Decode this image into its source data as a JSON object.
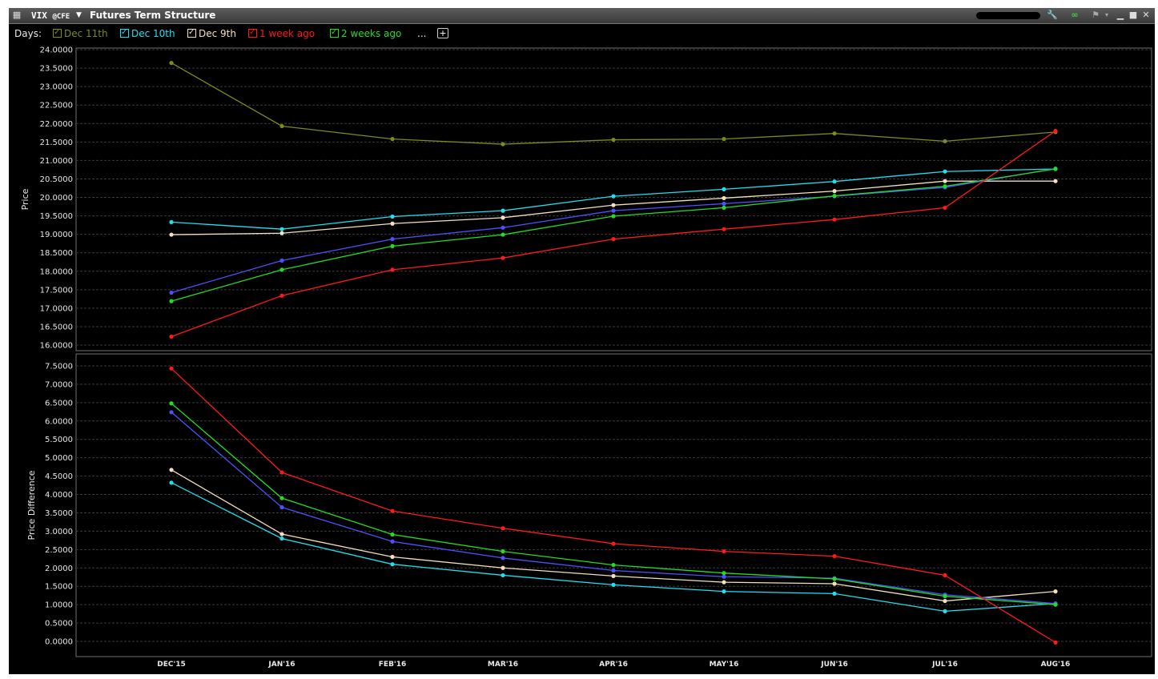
{
  "window": {
    "symbol": "VIX",
    "exchange": "@CFE",
    "title": "Futures Term Structure"
  },
  "legend": {
    "label": "Days:",
    "more": "...",
    "items": [
      {
        "label": "Dec 11th",
        "color": "#7a8c1c",
        "checked": true
      },
      {
        "label": "Dec 10th",
        "color": "#1ee0f0",
        "checked": true
      },
      {
        "label": "Dec 9th",
        "color": "#f5dfc0",
        "checked": true
      },
      {
        "label": "1 week ago",
        "color": "#ff1a1a",
        "checked": true
      },
      {
        "label": "2 weeks ago",
        "color": "#22dd22",
        "checked": true
      }
    ]
  },
  "icons": [
    "window-menu-icon",
    "wrench-icon",
    "link-icon",
    "flag-icon",
    "minimize-icon",
    "maximize-icon",
    "close-icon"
  ],
  "chart_data": [
    {
      "type": "line",
      "ylabel": "Price",
      "ylim": [
        16.0,
        24.0
      ],
      "yticks": [
        "16.0000",
        "16.5000",
        "17.0000",
        "17.5000",
        "18.0000",
        "18.5000",
        "19.0000",
        "19.5000",
        "20.0000",
        "20.5000",
        "21.0000",
        "21.5000",
        "22.0000",
        "22.5000",
        "23.0000",
        "23.5000",
        "24.0000"
      ],
      "categories": [
        "DEC'15",
        "JAN'16",
        "FEB'16",
        "MAR'16",
        "APR'16",
        "MAY'16",
        "JUN'16",
        "JUL'16",
        "AUG'16"
      ],
      "grid": true,
      "series": [
        {
          "color": "#7a8c1c",
          "values": [
            23.64,
            21.93,
            21.58,
            21.44,
            21.56,
            21.58,
            21.73,
            21.52,
            21.77
          ]
        },
        {
          "color": "#1ee0f0",
          "values": [
            19.33,
            19.14,
            19.48,
            19.64,
            20.03,
            20.22,
            20.43,
            20.7,
            20.77
          ]
        },
        {
          "color": "#f5dfc0",
          "values": [
            18.99,
            19.03,
            19.29,
            19.45,
            19.79,
            19.98,
            20.17,
            20.44,
            20.44
          ]
        },
        {
          "color": "#5050ff",
          "values": [
            17.42,
            18.29,
            18.87,
            19.18,
            19.64,
            19.83,
            20.03,
            20.27,
            20.78
          ]
        },
        {
          "color": "#22dd22",
          "values": [
            17.19,
            18.04,
            18.68,
            18.99,
            19.49,
            19.72,
            20.04,
            20.3,
            20.77
          ]
        },
        {
          "color": "#ff1a1a",
          "values": [
            16.23,
            17.34,
            18.04,
            18.36,
            18.87,
            19.14,
            19.4,
            19.72,
            21.8
          ]
        }
      ]
    },
    {
      "type": "line",
      "ylabel": "Price Difference",
      "ylim": [
        0.0,
        7.5
      ],
      "yticks": [
        "0.0000",
        "0.5000",
        "1.0000",
        "1.5000",
        "2.0000",
        "2.5000",
        "3.0000",
        "3.5000",
        "4.0000",
        "4.5000",
        "5.0000",
        "5.5000",
        "6.0000",
        "6.5000",
        "7.0000",
        "7.5000"
      ],
      "categories": [
        "DEC'15",
        "JAN'16",
        "FEB'16",
        "MAR'16",
        "APR'16",
        "MAY'16",
        "JUN'16",
        "JUL'16",
        "AUG'16"
      ],
      "grid": true,
      "series": [
        {
          "color": "#1ee0f0",
          "values": [
            4.32,
            2.8,
            2.1,
            1.8,
            1.54,
            1.36,
            1.3,
            0.82,
            1.03
          ]
        },
        {
          "color": "#f5dfc0",
          "values": [
            4.67,
            2.92,
            2.3,
            2.0,
            1.78,
            1.61,
            1.57,
            1.1,
            1.36
          ]
        },
        {
          "color": "#5050ff",
          "values": [
            6.24,
            3.65,
            2.72,
            2.27,
            1.93,
            1.76,
            1.72,
            1.27,
            1.03
          ]
        },
        {
          "color": "#22dd22",
          "values": [
            6.48,
            3.9,
            2.91,
            2.45,
            2.08,
            1.86,
            1.7,
            1.23,
            1.0
          ]
        },
        {
          "color": "#ff1a1a",
          "values": [
            7.43,
            4.6,
            3.55,
            3.08,
            2.66,
            2.45,
            2.32,
            1.8,
            -0.03
          ]
        }
      ]
    }
  ]
}
